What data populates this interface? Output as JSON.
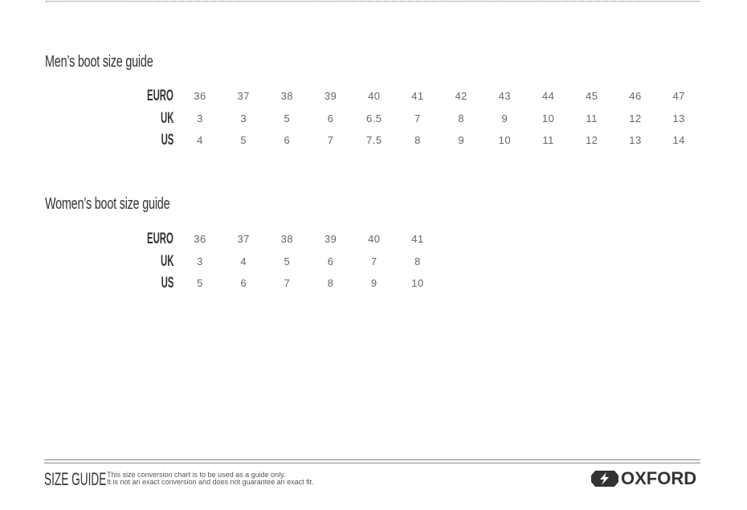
{
  "mens": {
    "title": "Men’s boot size guide",
    "rows": [
      {
        "label": "EURO",
        "values": [
          "36",
          "37",
          "38",
          "39",
          "40",
          "41",
          "42",
          "43",
          "44",
          "45",
          "46",
          "47"
        ]
      },
      {
        "label": "UK",
        "values": [
          "3",
          "3",
          "5",
          "6",
          "6.5",
          "7",
          "8",
          "9",
          "10",
          "11",
          "12",
          "13"
        ]
      },
      {
        "label": "US",
        "values": [
          "4",
          "5",
          "6",
          "7",
          "7.5",
          "8",
          "9",
          "10",
          "11",
          "12",
          "13",
          "14"
        ]
      }
    ]
  },
  "womens": {
    "title": "Women’s boot size guide",
    "rows": [
      {
        "label": "EURO",
        "values": [
          "36",
          "37",
          "38",
          "39",
          "40",
          "41"
        ]
      },
      {
        "label": "UK",
        "values": [
          "3",
          "4",
          "5",
          "6",
          "7",
          "8"
        ]
      },
      {
        "label": "US",
        "values": [
          "5",
          "6",
          "7",
          "8",
          "9",
          "10"
        ]
      }
    ]
  },
  "footer": {
    "heading": "SIZE GUIDE",
    "disclaimer_line1": "This size conversion chart is to be used as a guide only.",
    "disclaimer_line2": "It is not an exact conversion and does not guarantee an exact fit.",
    "brand": "OXFORD",
    "brand_icon": "oxford-logo-icon"
  }
}
